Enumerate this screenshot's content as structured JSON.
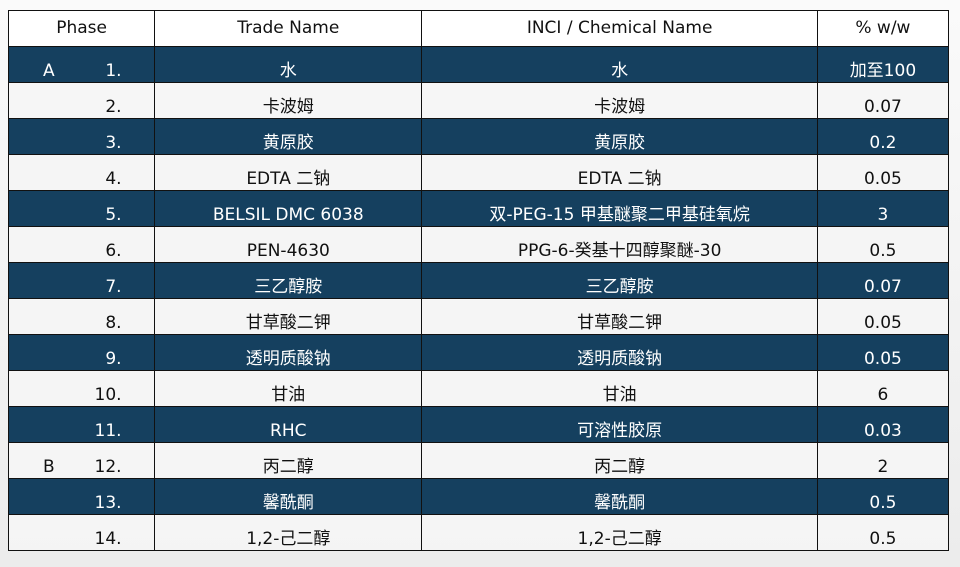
{
  "header": {
    "phase": "Phase",
    "trade_name": "Trade Name",
    "inci": "INCI / Chemical Name",
    "percent": "% w/w"
  },
  "rows": [
    {
      "phase": "A",
      "num": "1.",
      "trade": "水",
      "inci": "水",
      "pct": "加至100",
      "style": "dark"
    },
    {
      "phase": "",
      "num": "2.",
      "trade": "卡波姆",
      "inci": "卡波姆",
      "pct": "0.07",
      "style": "light"
    },
    {
      "phase": "",
      "num": "3.",
      "trade": "黄原胶",
      "inci": "黄原胶",
      "pct": "0.2",
      "style": "dark"
    },
    {
      "phase": "",
      "num": "4.",
      "trade": "EDTA 二钠",
      "inci": "EDTA 二钠",
      "pct": "0.05",
      "style": "light"
    },
    {
      "phase": "",
      "num": "5.",
      "trade": "BELSIL DMC 6038",
      "inci": "双-PEG-15 甲基醚聚二甲基硅氧烷",
      "pct": "3",
      "style": "dark"
    },
    {
      "phase": "",
      "num": "6.",
      "trade": "PEN-4630",
      "inci": "PPG-6-癸基十四醇聚醚-30",
      "pct": "0.5",
      "style": "light"
    },
    {
      "phase": "",
      "num": "7.",
      "trade": "三乙醇胺",
      "inci": "三乙醇胺",
      "pct": "0.07",
      "style": "dark"
    },
    {
      "phase": "",
      "num": "8.",
      "trade": "甘草酸二钾",
      "inci": "甘草酸二钾",
      "pct": "0.05",
      "style": "light"
    },
    {
      "phase": "",
      "num": "9.",
      "trade": "透明质酸钠",
      "inci": "透明质酸钠",
      "pct": "0.05",
      "style": "dark"
    },
    {
      "phase": "",
      "num": "10.",
      "trade": "甘油",
      "inci": "甘油",
      "pct": "6",
      "style": "light"
    },
    {
      "phase": "",
      "num": "11.",
      "trade": "RHC",
      "inci": "可溶性胶原",
      "pct": "0.03",
      "style": "dark"
    },
    {
      "phase": "B",
      "num": "12.",
      "trade": "丙二醇",
      "inci": "丙二醇",
      "pct": "2",
      "style": "light"
    },
    {
      "phase": "",
      "num": "13.",
      "trade": "馨酰酮",
      "inci": "馨酰酮",
      "pct": "0.5",
      "style": "dark"
    },
    {
      "phase": "",
      "num": "14.",
      "trade": "1,2-己二醇",
      "inci": "1,2-己二醇",
      "pct": "0.5",
      "style": "light"
    }
  ],
  "colors": {
    "dark_row": "#15405f",
    "light_row": "#f5f5f5"
  }
}
